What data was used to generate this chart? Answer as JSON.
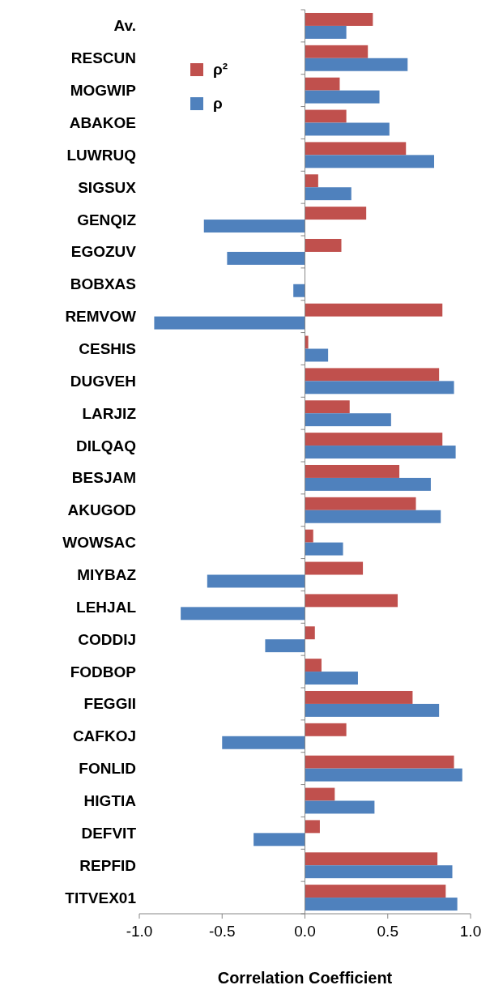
{
  "chart_data": {
    "type": "bar",
    "orientation": "horizontal",
    "xlabel": "Correlation Coefficient",
    "categories": [
      "Av.",
      "RESCUN",
      "MOGWIP",
      "ABAKOE",
      "LUWRUQ",
      "SIGSUX",
      "GENQIZ",
      "EGOZUV",
      "BOBXAS",
      "REMVOW",
      "CESHIS",
      "DUGVEH",
      "LARJIZ",
      "DILQAQ",
      "BESJAM",
      "AKUGOD",
      "WOWSAC",
      "MIYBAZ",
      "LEHJAL",
      "CODDIJ",
      "FODBOP",
      "FEGGII",
      "CAFKOJ",
      "FONLID",
      "HIGTIA",
      "DEFVIT",
      "REPFID",
      "TITVEX01"
    ],
    "series": [
      {
        "name": "ρ²",
        "color": "#c0504d",
        "values": [
          0.41,
          0.38,
          0.21,
          0.25,
          0.61,
          0.08,
          0.37,
          0.22,
          0.0,
          0.83,
          0.02,
          0.81,
          0.27,
          0.83,
          0.57,
          0.67,
          0.05,
          0.35,
          0.56,
          0.06,
          0.1,
          0.65,
          0.25,
          0.9,
          0.18,
          0.09,
          0.8,
          0.85
        ]
      },
      {
        "name": "ρ",
        "color": "#4f81bd",
        "values": [
          0.25,
          0.62,
          0.45,
          0.51,
          0.78,
          0.28,
          -0.61,
          -0.47,
          -0.07,
          -0.91,
          0.14,
          0.9,
          0.52,
          0.91,
          0.76,
          0.82,
          0.23,
          -0.59,
          -0.75,
          -0.24,
          0.32,
          0.81,
          -0.5,
          0.95,
          0.42,
          -0.31,
          0.89,
          0.92
        ]
      }
    ],
    "xlim": [
      -1,
      1
    ],
    "xticks": [
      {
        "value": -1,
        "label": "-1.0"
      },
      {
        "value": -0.5,
        "label": "-0.5"
      },
      {
        "value": 0,
        "label": "0.0"
      },
      {
        "value": 0.5,
        "label": "0.5"
      },
      {
        "value": 1,
        "label": "1.0"
      }
    ],
    "legend": "top left"
  }
}
